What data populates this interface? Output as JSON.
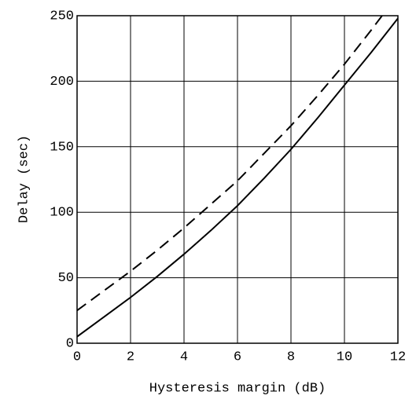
{
  "chart_data": {
    "type": "line",
    "xlabel": "Hysteresis margin (dB)",
    "ylabel": "Delay (sec)",
    "x": [
      0,
      1,
      2,
      3,
      4,
      5,
      6,
      7,
      8,
      9,
      10,
      11,
      12
    ],
    "series": [
      {
        "color": "#000000",
        "dash": "solid",
        "values": [
          5,
          20,
          35,
          51,
          68,
          86,
          105,
          126,
          148,
          172,
          197,
          222,
          248
        ]
      },
      {
        "color": "#000000",
        "dash": "dashed",
        "values": [
          25,
          40,
          55,
          71,
          88,
          106,
          124,
          145,
          166,
          189,
          213,
          239,
          266
        ]
      }
    ],
    "xlim": [
      0,
      12
    ],
    "xticks": [
      0,
      2,
      4,
      6,
      8,
      10,
      12
    ],
    "ylim": [
      0,
      250
    ],
    "yticks": [
      0,
      50,
      100,
      150,
      200,
      250
    ],
    "grid": true
  }
}
